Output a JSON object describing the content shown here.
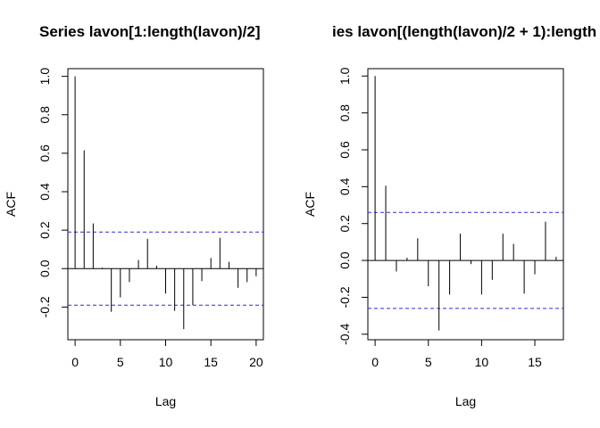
{
  "chart_data": [
    {
      "type": "bar",
      "title": "Series  lavon[1:length(lavon)/2]",
      "xlabel": "Lag",
      "ylabel": "ACF",
      "xlim": [
        -0.8,
        20.8
      ],
      "ylim": [
        -0.37,
        1.04
      ],
      "xticks": [
        0,
        5,
        10,
        15,
        20
      ],
      "yticks": [
        -0.2,
        0.0,
        0.2,
        0.4,
        0.6,
        0.8,
        1.0
      ],
      "x": [
        0,
        1,
        2,
        3,
        4,
        5,
        6,
        7,
        8,
        9,
        10,
        11,
        12,
        13,
        14,
        15,
        16,
        17,
        18,
        19,
        20
      ],
      "values": [
        1.0,
        0.615,
        0.235,
        0.005,
        -0.225,
        -0.15,
        -0.07,
        0.045,
        0.155,
        0.015,
        -0.13,
        -0.22,
        -0.315,
        -0.19,
        -0.065,
        0.055,
        0.16,
        0.035,
        -0.1,
        -0.07,
        -0.04
      ],
      "ci": 0.19
    },
    {
      "type": "bar",
      "title": "ies  lavon[(length(lavon)/2 + 1):length",
      "xlabel": "Lag",
      "ylabel": "ACF",
      "xlim": [
        -0.68,
        17.68
      ],
      "ylim": [
        -0.43,
        1.04
      ],
      "xticks": [
        0,
        5,
        10,
        15
      ],
      "yticks": [
        -0.4,
        -0.2,
        0.0,
        0.2,
        0.4,
        0.6,
        0.8,
        1.0
      ],
      "x": [
        0,
        1,
        2,
        3,
        4,
        5,
        6,
        7,
        8,
        9,
        10,
        11,
        12,
        13,
        14,
        15,
        16,
        17
      ],
      "values": [
        1.0,
        0.405,
        -0.06,
        0.015,
        0.12,
        -0.14,
        -0.38,
        -0.185,
        0.145,
        -0.02,
        -0.185,
        -0.105,
        0.145,
        0.09,
        -0.18,
        -0.075,
        0.21,
        0.02
      ],
      "ci": 0.26
    }
  ],
  "colors": {
    "ci_line": "#2b2bd6",
    "bars": "#000000",
    "axes": "#000000"
  }
}
